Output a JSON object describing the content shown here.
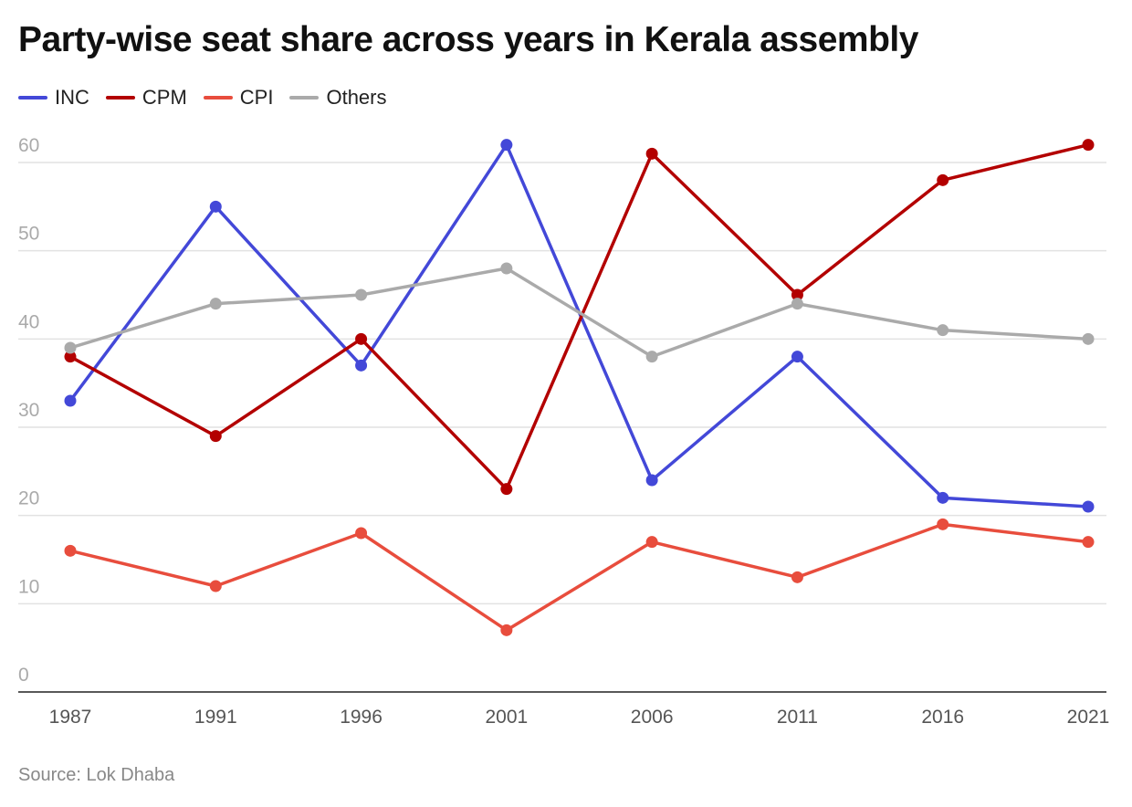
{
  "chart_data": {
    "type": "line",
    "title": "Party-wise seat share across years in Kerala assembly",
    "source": "Source: Lok Dhaba",
    "x": [
      "1987",
      "1991",
      "1996",
      "2001",
      "2006",
      "2011",
      "2016",
      "2021"
    ],
    "ylim": [
      0,
      60
    ],
    "yticks": [
      0,
      10,
      20,
      30,
      40,
      50,
      60
    ],
    "grid": true,
    "legend_position": "top-left",
    "series": [
      {
        "name": "INC",
        "color": "#4348d8",
        "values": [
          33,
          55,
          37,
          62,
          24,
          38,
          22,
          21
        ]
      },
      {
        "name": "CPM",
        "color": "#b30000",
        "values": [
          38,
          29,
          40,
          23,
          61,
          45,
          58,
          62
        ]
      },
      {
        "name": "CPI",
        "color": "#e84d3d",
        "values": [
          16,
          12,
          18,
          7,
          17,
          13,
          19,
          17
        ]
      },
      {
        "name": "Others",
        "color": "#aaaaaa",
        "values": [
          39,
          44,
          45,
          48,
          38,
          44,
          41,
          40
        ]
      }
    ]
  }
}
